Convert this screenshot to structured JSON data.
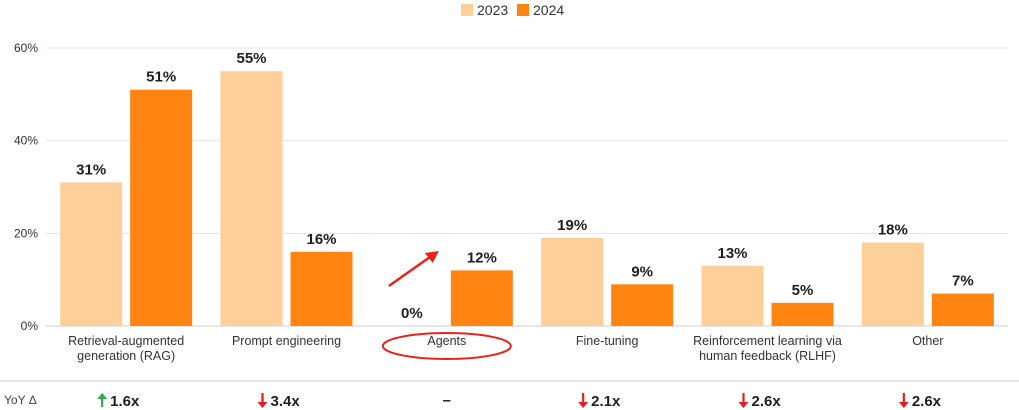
{
  "chart_data": {
    "type": "bar",
    "categories": [
      [
        "Retrieval-augmented",
        "generation (RAG)"
      ],
      [
        "Prompt engineering"
      ],
      [
        "Agents"
      ],
      [
        "Fine-tuning"
      ],
      [
        "Reinforcement learning via",
        "human feedback (RLHF)"
      ],
      [
        "Other"
      ]
    ],
    "series": [
      {
        "name": "2023",
        "values": [
          31,
          55,
          0,
          19,
          13,
          18
        ],
        "labels": [
          "31%",
          "55%",
          "0%",
          "19%",
          "13%",
          "18%"
        ]
      },
      {
        "name": "2024",
        "values": [
          51,
          16,
          12,
          9,
          5,
          7
        ],
        "labels": [
          "51%",
          "16%",
          "12%",
          "9%",
          "5%",
          "7%"
        ]
      }
    ],
    "ylim": [
      0,
      60
    ],
    "yticks": [
      0,
      20,
      40,
      60
    ],
    "ytick_labels": [
      "0%",
      "20%",
      "40%",
      "60%"
    ],
    "grid": true,
    "legend_position": "top-center",
    "colors": {
      "2023": "#FFCF99",
      "2024": "#FF8412",
      "grid": "#e4e4e4",
      "up": "#2fa84f",
      "down": "#e02020",
      "annotation": "#e8231a"
    },
    "yoy": {
      "label": "YoY Δ",
      "items": [
        {
          "dir": "up",
          "value": "1.6x"
        },
        {
          "dir": "down",
          "value": "3.4x"
        },
        {
          "dir": "none",
          "value": "–"
        },
        {
          "dir": "down",
          "value": "2.1x"
        },
        {
          "dir": "down",
          "value": "2.6x"
        },
        {
          "dir": "down",
          "value": "2.6x"
        }
      ]
    },
    "highlight_category": "Agents"
  }
}
